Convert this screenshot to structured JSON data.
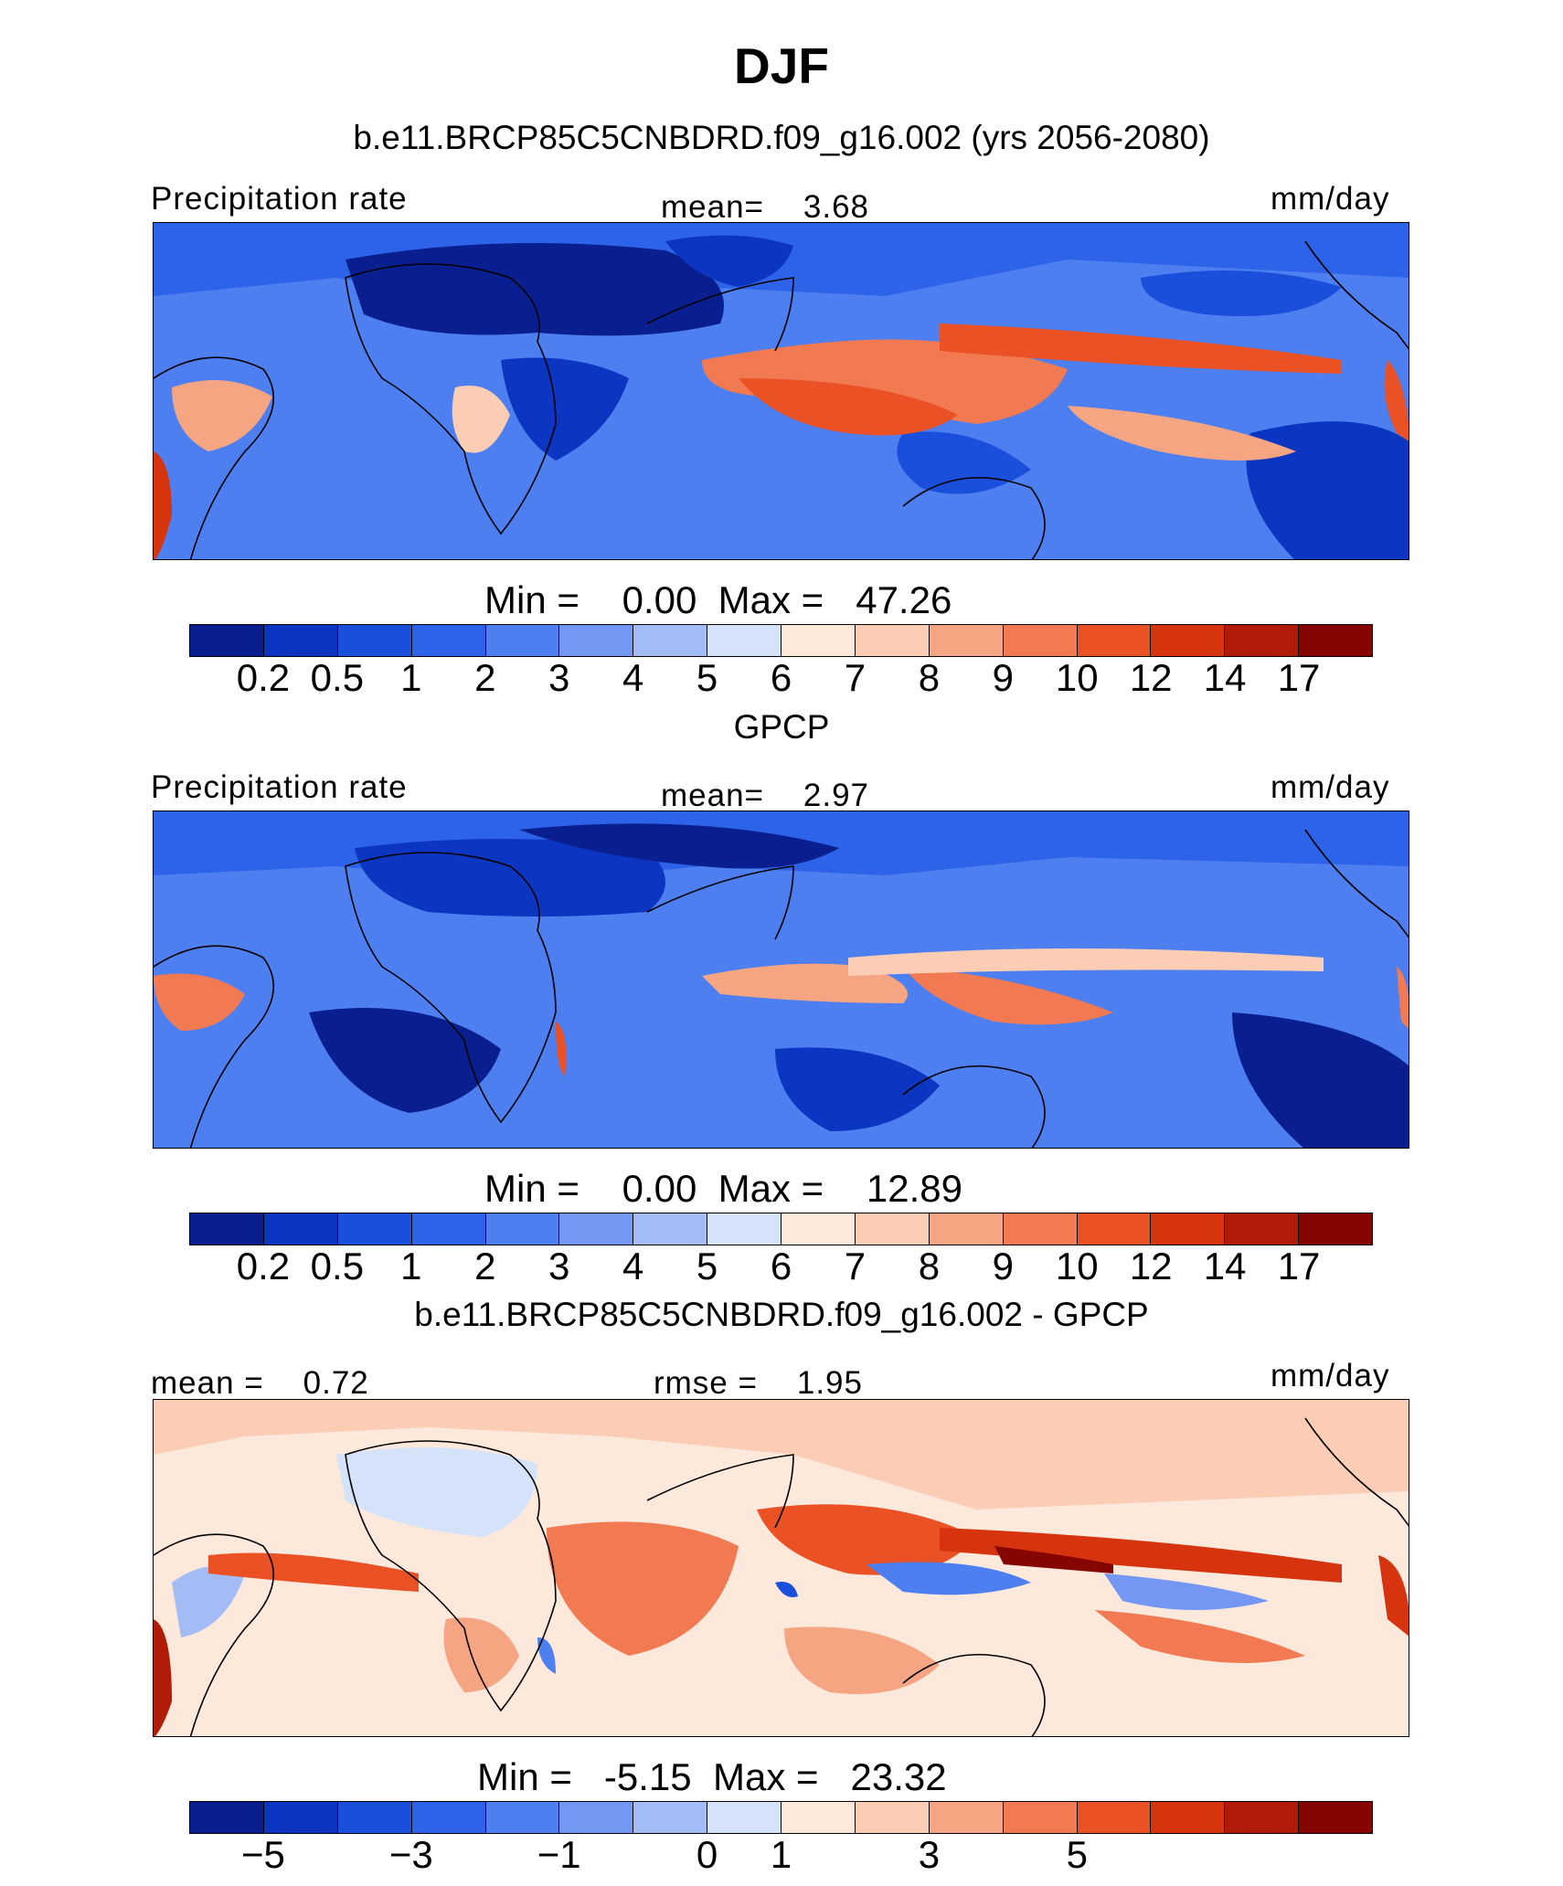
{
  "header": {
    "title": "DJF",
    "panel1_subtitle": "b.e11.BRCP85C5CNBDRD.f09_g16.002 (yrs 2056-2080)",
    "panel2_subtitle": "GPCP",
    "panel3_subtitle": "b.e11.BRCP85C5CNBDRD.f09_g16.002 - GPCP"
  },
  "panel1": {
    "left_label": "Precipitation rate",
    "mean_label": "mean=",
    "mean_value": "3.68",
    "units": "mm/day",
    "min_label": "Min  =",
    "min_value": "0.00",
    "max_label": "Max  =",
    "max_value": "47.26"
  },
  "panel2": {
    "left_label": "Precipitation rate",
    "mean_label": "mean=",
    "mean_value": "2.97",
    "units": "mm/day",
    "min_label": "Min  =",
    "min_value": "0.00",
    "max_label": "Max  =",
    "max_value": "12.89"
  },
  "panel3": {
    "mean_label": "mean  =",
    "mean_value": "0.72",
    "rmse_label": "rmse  =",
    "rmse_value": "1.95",
    "units": "mm/day",
    "min_label": "Min  =",
    "min_value": "-5.15",
    "max_label": "Max  =",
    "max_value": "23.32"
  },
  "colorbar_colors": [
    "#0a1f8f",
    "#0c36c2",
    "#1a4fdb",
    "#2c63e8",
    "#4d7ff0",
    "#7397f2",
    "#a3bcf5",
    "#d4e3fa",
    "#fde9dc",
    "#fbcdb5",
    "#f6a583",
    "#f27a52",
    "#ea5125",
    "#d6340f",
    "#b01c08",
    "#850600"
  ],
  "chart_data": [
    {
      "type": "heatmap",
      "title": "b.e11.BRCP85C5CNBDRD.f09_g16.002 (yrs 2056-2080)",
      "variable": "Precipitation rate",
      "units": "mm/day",
      "mean": 3.68,
      "min": 0.0,
      "max": 47.26,
      "colorbar_levels": [
        "0.2",
        "0.5",
        "1",
        "2",
        "3",
        "4",
        "5",
        "6",
        "7",
        "8",
        "9",
        "10",
        "12",
        "14",
        "17"
      ]
    },
    {
      "type": "heatmap",
      "title": "GPCP",
      "variable": "Precipitation rate",
      "units": "mm/day",
      "mean": 2.97,
      "min": 0.0,
      "max": 12.89,
      "colorbar_levels": [
        "0.2",
        "0.5",
        "1",
        "2",
        "3",
        "4",
        "5",
        "6",
        "7",
        "8",
        "9",
        "10",
        "12",
        "14",
        "17"
      ]
    },
    {
      "type": "heatmap",
      "title": "b.e11.BRCP85C5CNBDRD.f09_g16.002 - GPCP",
      "units": "mm/day",
      "mean": 0.72,
      "rmse": 1.95,
      "min": -5.15,
      "max": 23.32,
      "colorbar_tick_labels": [
        "−5",
        "−3",
        "−1",
        "0",
        "1",
        "3",
        "5"
      ]
    }
  ]
}
